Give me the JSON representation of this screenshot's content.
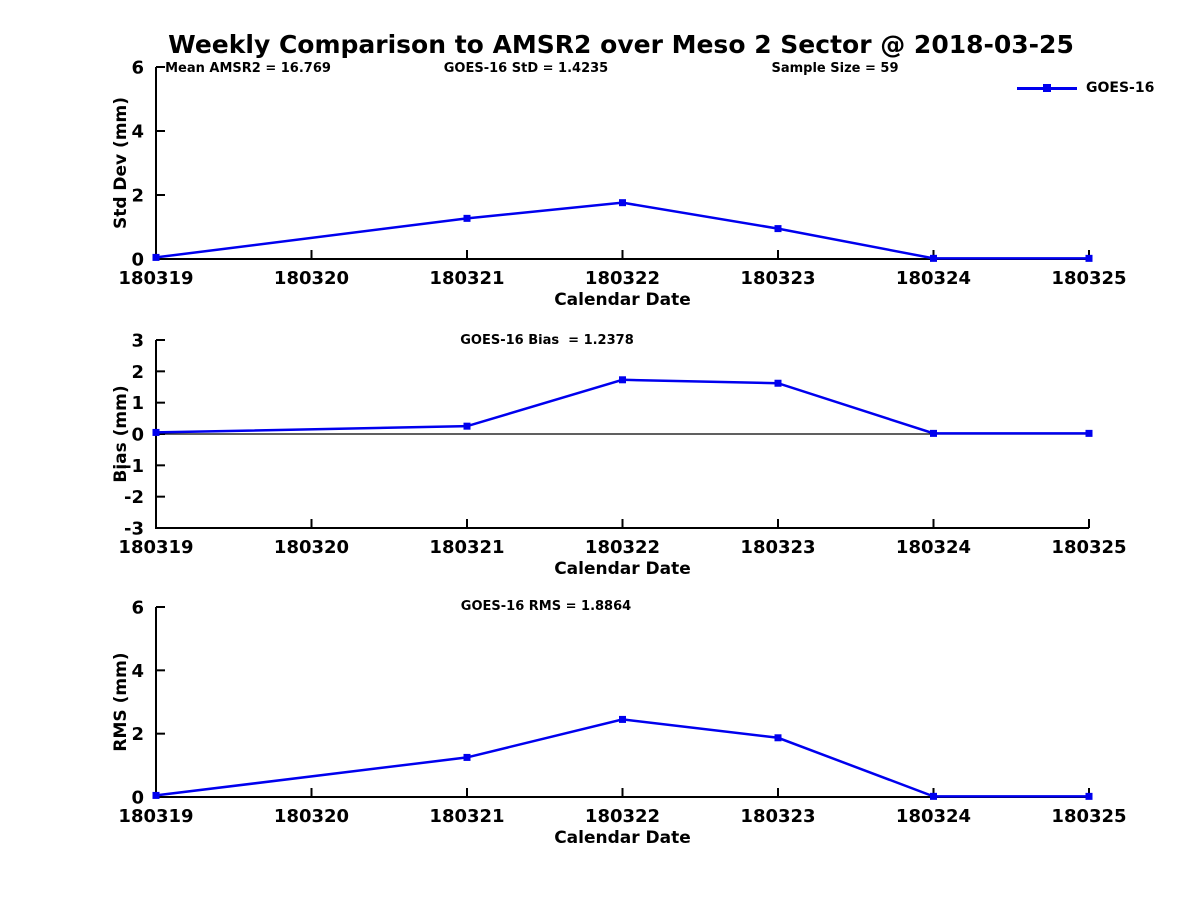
{
  "title": "Weekly Comparison to AMSR2 over Meso 2 Sector @ 2018-03-25",
  "legend": {
    "label": "GOES-16",
    "series_color": "#0000ee",
    "marker": "filled-square"
  },
  "colors": {
    "series": "#0000ee",
    "axis": "#000000",
    "background": "#ffffff"
  },
  "chart_data": [
    {
      "type": "line",
      "panel": "std-dev",
      "x": [
        180319,
        180321,
        180322,
        180323,
        180324,
        180325
      ],
      "series": [
        {
          "name": "GOES-16",
          "values": [
            0.05,
            1.27,
            1.76,
            0.95,
            0.02,
            0.02
          ]
        }
      ],
      "xlabel": "Calendar Date",
      "ylabel": "Std Dev (mm)",
      "xlim": [
        180319,
        180325
      ],
      "ylim": [
        0,
        6
      ],
      "xticks": [
        180319,
        180320,
        180321,
        180322,
        180323,
        180324,
        180325
      ],
      "yticks": [
        0,
        2,
        4,
        6
      ],
      "zero_line": false,
      "grid": false,
      "legend_position": "top-right",
      "annotations": [
        "Mean AMSR2 = 16.769",
        "GOES-16 StD = 1.4235",
        "Sample Size = 59"
      ]
    },
    {
      "type": "line",
      "panel": "bias",
      "x": [
        180319,
        180321,
        180322,
        180323,
        180324,
        180325
      ],
      "series": [
        {
          "name": "GOES-16",
          "values": [
            0.05,
            0.25,
            1.73,
            1.62,
            0.02,
            0.02
          ]
        }
      ],
      "xlabel": "Calendar Date",
      "ylabel": "Bias (mm)",
      "xlim": [
        180319,
        180325
      ],
      "ylim": [
        -3,
        3
      ],
      "xticks": [
        180319,
        180320,
        180321,
        180322,
        180323,
        180324,
        180325
      ],
      "yticks": [
        -3,
        -2,
        -1,
        0,
        1,
        2,
        3
      ],
      "zero_line": true,
      "grid": false,
      "annotations": [
        "GOES-16 Bias  = 1.2378"
      ]
    },
    {
      "type": "line",
      "panel": "rms",
      "x": [
        180319,
        180321,
        180322,
        180323,
        180324,
        180325
      ],
      "series": [
        {
          "name": "GOES-16",
          "values": [
            0.05,
            1.25,
            2.45,
            1.87,
            0.02,
            0.02
          ]
        }
      ],
      "xlabel": "Calendar Date",
      "ylabel": "RMS (mm)",
      "xlim": [
        180319,
        180325
      ],
      "ylim": [
        0,
        6
      ],
      "xticks": [
        180319,
        180320,
        180321,
        180322,
        180323,
        180324,
        180325
      ],
      "yticks": [
        0,
        2,
        4,
        6
      ],
      "zero_line": false,
      "grid": false,
      "annotations": [
        "GOES-16 RMS = 1.8864"
      ]
    }
  ]
}
